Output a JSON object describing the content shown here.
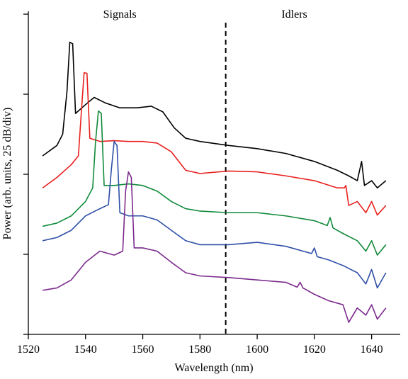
{
  "chart_data": {
    "type": "line",
    "x_label": "Wavelength (nm)",
    "y_label": "Power (arb. units, 25 dB/div)",
    "xlim": [
      1520,
      1650
    ],
    "xticks": [
      1520,
      1540,
      1560,
      1580,
      1600,
      1620,
      1640
    ],
    "ylim": [
      0,
      4
    ],
    "yticks": [
      0,
      1,
      2,
      3,
      4
    ],
    "ytick_labels_shown": false,
    "vlines": [
      1589
    ],
    "annotations": [
      {
        "text": "Signals",
        "x": 1552
      },
      {
        "text": "Idlers",
        "x": 1613
      }
    ],
    "series": [
      {
        "color": "#000000",
        "x": [
          1525,
          1530,
          1532,
          1533.5,
          1534.5,
          1535.5,
          1536.5,
          1540,
          1543,
          1547,
          1552,
          1558,
          1563,
          1567,
          1571,
          1575,
          1580,
          1590,
          1600,
          1610,
          1620,
          1628,
          1632,
          1635,
          1636.5,
          1637.5,
          1640,
          1642,
          1645
        ],
        "values": [
          2.23,
          2.36,
          2.5,
          3.03,
          3.65,
          3.63,
          2.76,
          2.87,
          2.96,
          2.89,
          2.83,
          2.83,
          2.85,
          2.78,
          2.58,
          2.45,
          2.41,
          2.36,
          2.32,
          2.26,
          2.16,
          2.05,
          1.98,
          1.92,
          2.16,
          1.86,
          1.92,
          1.83,
          1.92
        ]
      },
      {
        "color": "#e8201e",
        "x": [
          1525,
          1530,
          1535,
          1537.5,
          1538.5,
          1539.5,
          1540.5,
          1541.5,
          1545,
          1550,
          1555,
          1560,
          1565,
          1570,
          1575,
          1580,
          1590,
          1600,
          1610,
          1620,
          1628,
          1630.5,
          1631,
          1632,
          1635,
          1638,
          1640,
          1642,
          1645
        ],
        "values": [
          1.83,
          1.96,
          2.12,
          2.23,
          2.76,
          3.27,
          3.26,
          2.45,
          2.41,
          2.42,
          2.41,
          2.41,
          2.39,
          2.28,
          2.05,
          2.01,
          2.04,
          2.03,
          1.98,
          1.92,
          1.83,
          1.83,
          1.86,
          1.61,
          1.66,
          1.52,
          1.66,
          1.49,
          1.61
        ]
      },
      {
        "color": "#108a3a",
        "x": [
          1525,
          1530,
          1535,
          1540,
          1542.5,
          1543.5,
          1544.5,
          1545.5,
          1546.5,
          1550,
          1555,
          1560,
          1565,
          1570,
          1575,
          1580,
          1590,
          1600,
          1610,
          1620,
          1624.5,
          1625.5,
          1626.5,
          1630,
          1635,
          1638,
          1640,
          1642,
          1645
        ],
        "values": [
          1.35,
          1.39,
          1.48,
          1.66,
          1.83,
          2.41,
          2.79,
          2.76,
          1.86,
          1.86,
          1.88,
          1.86,
          1.79,
          1.66,
          1.57,
          1.54,
          1.52,
          1.52,
          1.48,
          1.42,
          1.36,
          1.46,
          1.33,
          1.26,
          1.17,
          1.04,
          1.17,
          0.99,
          1.12
        ]
      },
      {
        "color": "#2f4fa8",
        "x": [
          1525,
          1530,
          1535,
          1540,
          1545,
          1548,
          1549,
          1550,
          1551,
          1552,
          1555,
          1560,
          1565,
          1570,
          1575,
          1580,
          1590,
          1600,
          1610,
          1619,
          1620,
          1621,
          1625,
          1630,
          1635,
          1638,
          1640,
          1642,
          1645
        ],
        "values": [
          1.17,
          1.21,
          1.3,
          1.48,
          1.57,
          1.62,
          2.05,
          2.41,
          2.36,
          1.52,
          1.48,
          1.48,
          1.43,
          1.3,
          1.17,
          1.12,
          1.12,
          1.15,
          1.1,
          1.01,
          1.08,
          0.97,
          0.93,
          0.86,
          0.77,
          0.63,
          0.81,
          0.58,
          0.77
        ]
      },
      {
        "color": "#7b2a8c",
        "x": [
          1525,
          1530,
          1535,
          1540,
          1545,
          1550,
          1553,
          1554,
          1555,
          1556,
          1557,
          1560,
          1565,
          1570,
          1575,
          1580,
          1590,
          1600,
          1610,
          1614,
          1615,
          1616,
          1620,
          1625,
          1630,
          1632,
          1635,
          1638,
          1640,
          1642,
          1645
        ],
        "values": [
          0.55,
          0.58,
          0.68,
          0.9,
          1.04,
          0.99,
          1.04,
          1.79,
          2.03,
          1.96,
          1.08,
          1.08,
          1.04,
          0.9,
          0.77,
          0.73,
          0.71,
          0.68,
          0.65,
          0.59,
          0.65,
          0.58,
          0.5,
          0.42,
          0.37,
          0.15,
          0.33,
          0.24,
          0.37,
          0.19,
          0.33
        ]
      }
    ]
  }
}
